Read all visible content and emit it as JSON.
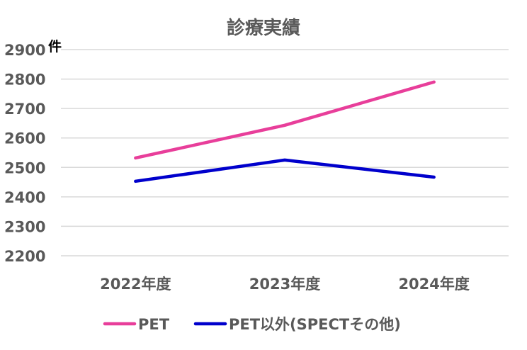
{
  "chart_data": {
    "type": "line",
    "title": "診療実績",
    "unit_label": "件",
    "categories": [
      "2022年度",
      "2023年度",
      "2024年度"
    ],
    "series": [
      {
        "name": "PET",
        "values": [
          2532,
          2643,
          2790
        ],
        "color": "#e83e9a"
      },
      {
        "name": "PET以外(SPECTその他)",
        "values": [
          2453,
          2525,
          2467
        ],
        "color": "#0000cc"
      }
    ],
    "ylim": [
      2200,
      2900
    ],
    "yticks": [
      2200,
      2300,
      2400,
      2500,
      2600,
      2700,
      2800,
      2900
    ],
    "grid": true,
    "legend": "bottom"
  }
}
